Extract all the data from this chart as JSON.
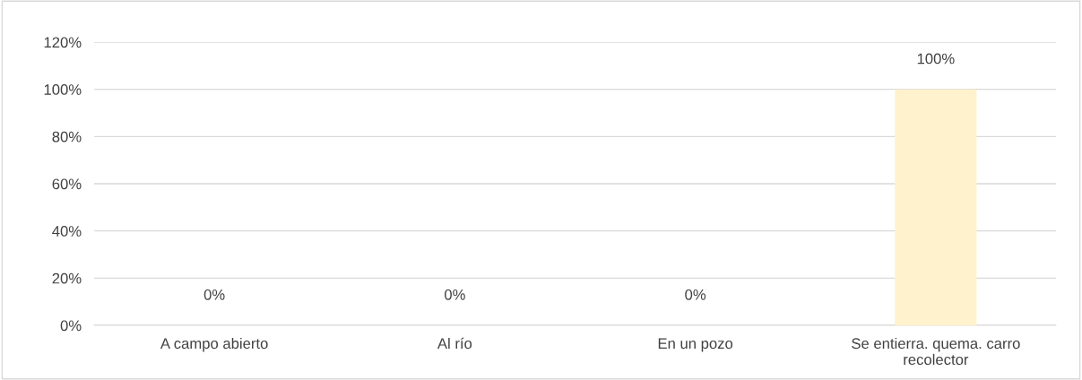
{
  "chart_data": {
    "type": "bar",
    "categories": [
      "A campo abierto",
      "Al río",
      "En un pozo",
      "Se entierra. quema. carro recolector"
    ],
    "values": [
      0,
      0,
      0,
      100
    ],
    "value_labels": [
      "0%",
      "0%",
      "0%",
      "100%"
    ],
    "color": "#fff2cc",
    "ylim": [
      0,
      120
    ],
    "yticks": [
      {
        "value": 0,
        "label": "0%"
      },
      {
        "value": 20,
        "label": "20%"
      },
      {
        "value": 40,
        "label": "40%"
      },
      {
        "value": 60,
        "label": "60%"
      },
      {
        "value": 80,
        "label": "80%"
      },
      {
        "value": 100,
        "label": "100%"
      },
      {
        "value": 120,
        "label": "120%"
      }
    ],
    "grid": "y",
    "legend": false
  }
}
